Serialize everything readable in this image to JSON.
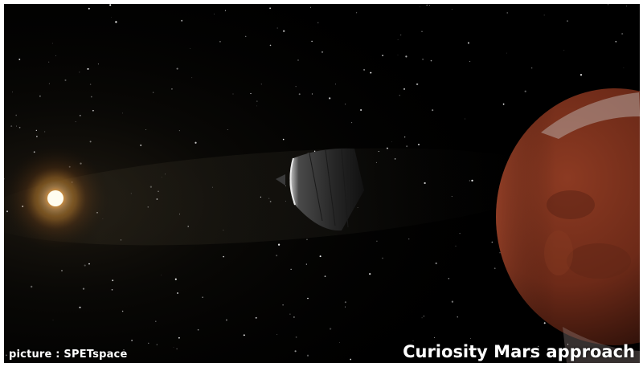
{
  "image": {
    "caption": "Curiosity Mars approach",
    "credit": "picture : SPETspace"
  },
  "scene": {
    "elements": [
      "starfield",
      "sun",
      "spacecraft",
      "mars-planet"
    ],
    "colors": {
      "space": "#000000",
      "sun_core": "#fff6d8",
      "sun_glow": "#f3a43a",
      "mars": "#7a2f1e",
      "frame": "#ffffff"
    }
  }
}
